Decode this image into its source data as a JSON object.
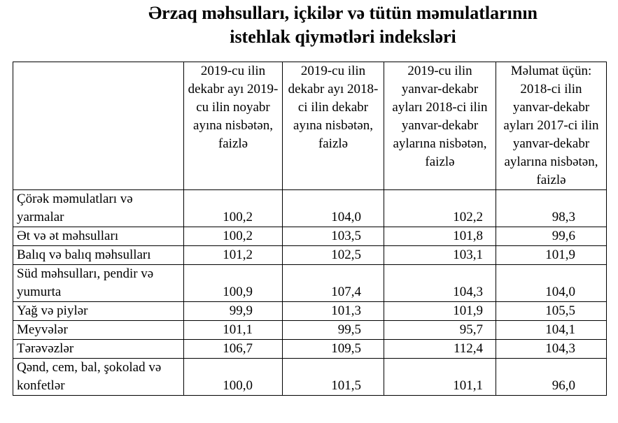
{
  "title": [
    "Ərzaq məhsulları, içkilər və tütün məmulatlarının",
    "istehlak qiymətləri indeksləri"
  ],
  "table": {
    "columns": [
      "2019-cu ilin dekabr ayı 2019-cu ilin noyabr ayına nisbətən, faizlə",
      "2019-cu ilin dekabr ayı 2018-ci ilin dekabr ayına nisbətən, faizlə",
      "2019-cu ilin yanvar-dekabr ayları 2018-ci ilin yanvar-dekabr aylarına nisbətən, faizlə",
      "Məlumat üçün: 2018-ci ilin yanvar-dekabr ayları 2017-ci ilin yanvar-dekabr aylarına nisbətən, faizlə"
    ],
    "rows": [
      [
        "Çörək məmulatları və yarmalar",
        "100,2",
        "104,0",
        "102,2",
        "98,3"
      ],
      [
        "Ət və ət məhsulları",
        "100,2",
        "103,5",
        "101,8",
        "99,6"
      ],
      [
        "Balıq və balıq məhsulları",
        "101,2",
        "102,5",
        "103,1",
        "101,9"
      ],
      [
        "Süd məhsulları, pendir və yumurta",
        "100,9",
        "107,4",
        "104,3",
        "104,0"
      ],
      [
        "Yağ və piylər",
        "99,9",
        "101,3",
        "101,9",
        "105,5"
      ],
      [
        "Meyvələr",
        "101,1",
        "99,5",
        "95,7",
        "104,1"
      ],
      [
        "Tərəvəzlər",
        "106,7",
        "109,5",
        "112,4",
        "104,3"
      ],
      [
        "Qənd, cem, bal, şokolad və konfetlər",
        "100,0",
        "101,5",
        "101,1",
        "96,0"
      ]
    ]
  }
}
